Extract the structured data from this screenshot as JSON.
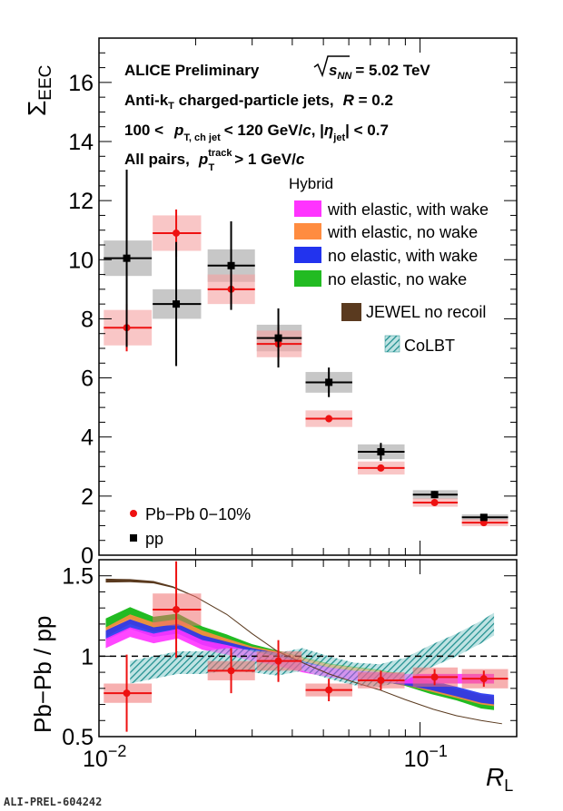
{
  "chart_data": [
    {
      "type": "scatter",
      "panel": "top",
      "ylabel": "Σ",
      "ylabel_sub": "EEC",
      "ylim": [
        0,
        17.5
      ],
      "yticks": [
        "0",
        "2",
        "4",
        "6",
        "8",
        "10",
        "12",
        "14",
        "16"
      ],
      "x_scale": "log",
      "xlim": [
        0.01,
        0.2
      ],
      "annotations": {
        "line1_a": "ALICE Preliminary",
        "line1_b_root": "s",
        "line1_b_sub": "NN",
        "line1_b_rest": "= 5.02 TeV",
        "line2_a": "Anti-k",
        "line2_sub": "T",
        "line2_b": " charged-particle jets,",
        "line2_c": "R",
        "line2_d": " = 0.2",
        "line3_a": "100 <",
        "line3_p": "p",
        "line3_sub": "T, ch jet",
        "line3_b": "< 120 GeV/",
        "line3_c": "c",
        "line3_d": ", |",
        "line3_eta": "η",
        "line3_eta_sub": "jet",
        "line3_e": "| < 0.7",
        "line4_a": "All pairs,",
        "line4_p": "p",
        "line4_sup": "track",
        "line4_sub": "T",
        "line4_b": "> 1 GeV/",
        "line4_c": "c"
      },
      "legend": {
        "hybrid_title": "Hybrid",
        "hybrid": [
          {
            "label": "with elastic, with wake",
            "color": "#ff33ff"
          },
          {
            "label": "with elastic, no wake",
            "color": "#ff8c40"
          },
          {
            "label": "no elastic, with wake",
            "color": "#2233ee"
          },
          {
            "label": "no elastic, no wake",
            "color": "#22bb22"
          }
        ],
        "jewel": {
          "label": "JEWEL no recoil",
          "color": "#5a3a1f"
        },
        "colbt": {
          "label": "CoLBT",
          "color": "#1f8f8f"
        },
        "pbpb": {
          "label": "Pb−Pb 0−10%",
          "color": "#ee1111"
        },
        "pp": {
          "label": "pp",
          "color": "#000000"
        }
      },
      "series": [
        {
          "name": "Pb−Pb 0−10%",
          "x": [
            0.0122,
            0.0174,
            0.0258,
            0.0362,
            0.052,
            0.0755,
            0.111,
            0.158
          ],
          "x_lo": [
            0.01035,
            0.0147,
            0.0218,
            0.031,
            0.044,
            0.064,
            0.095,
            0.135
          ],
          "x_hi": [
            0.0146,
            0.0208,
            0.0306,
            0.0428,
            0.0615,
            0.0895,
            0.131,
            0.188
          ],
          "y": [
            7.7,
            10.9,
            9.0,
            7.15,
            4.62,
            2.95,
            1.78,
            1.1
          ],
          "stat": [
            0.8,
            0.8,
            0.6,
            0.55,
            0.12,
            0.08,
            0.05,
            0.04
          ],
          "sys": [
            0.6,
            0.6,
            0.5,
            0.45,
            0.28,
            0.22,
            0.14,
            0.12
          ]
        },
        {
          "name": "pp",
          "x": [
            0.0122,
            0.0174,
            0.0258,
            0.0362,
            0.052,
            0.0755,
            0.111,
            0.158
          ],
          "x_lo": [
            0.01035,
            0.0147,
            0.0218,
            0.031,
            0.044,
            0.064,
            0.095,
            0.135
          ],
          "x_hi": [
            0.0146,
            0.0208,
            0.0306,
            0.0428,
            0.0615,
            0.0895,
            0.131,
            0.188
          ],
          "y": [
            10.05,
            8.5,
            9.8,
            7.35,
            5.85,
            3.5,
            2.05,
            1.28
          ],
          "stat": [
            3.0,
            2.1,
            1.5,
            1.0,
            0.5,
            0.3,
            0.12,
            0.08
          ],
          "sys": [
            0.6,
            0.5,
            0.55,
            0.45,
            0.35,
            0.25,
            0.15,
            0.1
          ]
        }
      ]
    },
    {
      "type": "line",
      "panel": "bottom",
      "ylabel": "Pb−Pb / pp",
      "ylim": [
        0.5,
        1.6
      ],
      "yticks": [
        "0.5",
        "1",
        "1.5"
      ],
      "x_scale": "log",
      "xlim": [
        0.01,
        0.2
      ],
      "xlabel": "R",
      "xlabel_sub": "L",
      "xticks": [
        {
          "base": "10",
          "exp": "−2",
          "value": 0.01
        },
        {
          "base": "10",
          "exp": "−1",
          "value": 0.1
        }
      ],
      "reference_line": 1.0,
      "ratio": {
        "x": [
          0.0122,
          0.0174,
          0.0258,
          0.0362,
          0.052,
          0.0755,
          0.111,
          0.158
        ],
        "x_lo": [
          0.01035,
          0.0147,
          0.0218,
          0.031,
          0.044,
          0.064,
          0.095,
          0.135
        ],
        "x_hi": [
          0.0146,
          0.0208,
          0.0306,
          0.0428,
          0.0615,
          0.0895,
          0.131,
          0.188
        ],
        "y": [
          0.77,
          1.29,
          0.91,
          0.97,
          0.79,
          0.85,
          0.87,
          0.86
        ],
        "stat": [
          0.24,
          0.3,
          0.14,
          0.13,
          0.07,
          0.06,
          0.05,
          0.05
        ],
        "sys": [
          0.06,
          0.1,
          0.06,
          0.06,
          0.04,
          0.05,
          0.06,
          0.06
        ]
      },
      "models": {
        "x": [
          0.0105,
          0.0125,
          0.0148,
          0.0176,
          0.021,
          0.025,
          0.03,
          0.036,
          0.043,
          0.052,
          0.062,
          0.075,
          0.09,
          0.108,
          0.13,
          0.155,
          0.17
        ],
        "green_no_elastic_no_wake": {
          "y": [
            1.2,
            1.27,
            1.21,
            1.23,
            1.15,
            1.1,
            1.04,
            1.0,
            0.96,
            0.92,
            0.9,
            0.88,
            0.85,
            0.8,
            0.76,
            0.71,
            0.7
          ],
          "w": 0.035
        },
        "orange_with_elastic_no_wake": {
          "y": [
            1.15,
            1.23,
            1.18,
            1.2,
            1.13,
            1.08,
            1.03,
            1.0,
            0.96,
            0.92,
            0.9,
            0.88,
            0.85,
            0.81,
            0.77,
            0.73,
            0.72
          ],
          "w": 0.03
        },
        "blue_no_elastic_with_wake": {
          "y": [
            1.13,
            1.2,
            1.15,
            1.17,
            1.1,
            1.06,
            1.02,
            0.99,
            0.94,
            0.9,
            0.88,
            0.87,
            0.85,
            0.82,
            0.78,
            0.74,
            0.73
          ],
          "w": 0.03
        },
        "magenta_with_elastic_with_wake": {
          "y": [
            1.08,
            1.15,
            1.11,
            1.14,
            1.07,
            1.04,
            1.0,
            0.97,
            0.93,
            0.9,
            0.88,
            0.87,
            0.86,
            0.86,
            0.86,
            0.86,
            0.86
          ],
          "w": 0.03
        },
        "jewel": {
          "x": [
            0.0105,
            0.0125,
            0.0148,
            0.017,
            0.02,
            0.025,
            0.03,
            0.036,
            0.043,
            0.052,
            0.062,
            0.075,
            0.09,
            0.11,
            0.13,
            0.155,
            0.18
          ],
          "y": [
            1.47,
            1.47,
            1.46,
            1.43,
            1.37,
            1.26,
            1.14,
            1.03,
            0.96,
            0.89,
            0.84,
            0.79,
            0.73,
            0.67,
            0.63,
            0.6,
            0.58
          ],
          "top_w": 0.012
        },
        "colbt": {
          "x": [
            0.0125,
            0.0148,
            0.0176,
            0.021,
            0.025,
            0.03,
            0.036,
            0.043,
            0.052,
            0.062,
            0.075,
            0.09,
            0.108,
            0.13,
            0.155,
            0.17
          ],
          "y": [
            0.9,
            0.93,
            0.96,
            0.96,
            0.98,
            0.97,
            0.95,
            0.98,
            0.93,
            0.89,
            0.88,
            0.92,
            1.0,
            1.07,
            1.15,
            1.2
          ],
          "w": 0.07
        }
      }
    }
  ],
  "footer": "ALI-PREL-604242"
}
